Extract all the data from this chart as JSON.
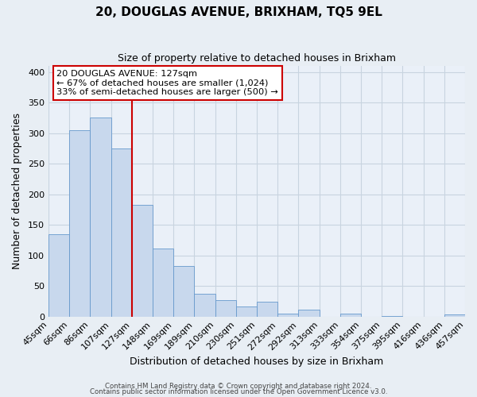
{
  "title": "20, DOUGLAS AVENUE, BRIXHAM, TQ5 9EL",
  "subtitle": "Size of property relative to detached houses in Brixham",
  "xlabel": "Distribution of detached houses by size in Brixham",
  "ylabel": "Number of detached properties",
  "bar_labels": [
    "45sqm",
    "66sqm",
    "86sqm",
    "107sqm",
    "127sqm",
    "148sqm",
    "169sqm",
    "189sqm",
    "210sqm",
    "230sqm",
    "251sqm",
    "272sqm",
    "292sqm",
    "313sqm",
    "333sqm",
    "354sqm",
    "375sqm",
    "395sqm",
    "416sqm",
    "436sqm",
    "457sqm"
  ],
  "bar_values": [
    135,
    305,
    325,
    275,
    183,
    111,
    83,
    37,
    27,
    17,
    24,
    5,
    11,
    0,
    5,
    0,
    1,
    0,
    0,
    3
  ],
  "bar_color": "#c8d8ed",
  "bar_edge_color": "#6699cc",
  "vline_x_index": 4,
  "vline_color": "#cc0000",
  "annotation_line1": "20 DOUGLAS AVENUE: 127sqm",
  "annotation_line2": "← 67% of detached houses are smaller (1,024)",
  "annotation_line3": "33% of semi-detached houses are larger (500) →",
  "annotation_box_color": "#ffffff",
  "annotation_box_edge_color": "#cc0000",
  "ylim": [
    0,
    410
  ],
  "yticks": [
    0,
    50,
    100,
    150,
    200,
    250,
    300,
    350,
    400
  ],
  "footer_line1": "Contains HM Land Registry data © Crown copyright and database right 2024.",
  "footer_line2": "Contains public sector information licensed under the Open Government Licence v3.0.",
  "fig_bg_color": "#e8eef4",
  "plot_bg_color": "#eaf0f8",
  "grid_color": "#c8d4e0"
}
